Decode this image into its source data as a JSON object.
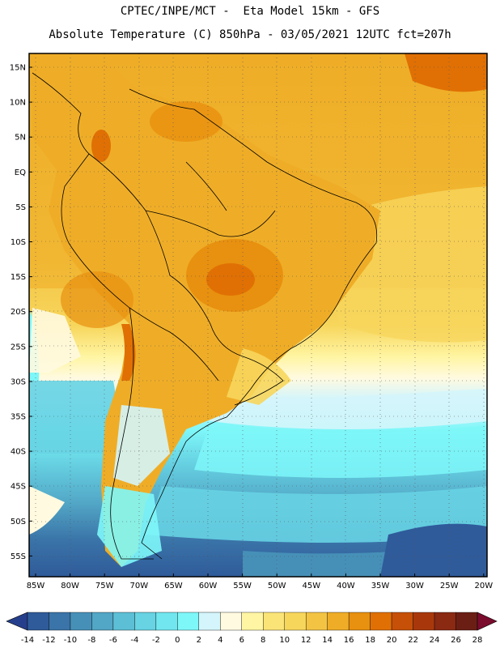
{
  "header": {
    "line1": "CPTEC/INPE/MCT -  Eta Model 15km - GFS",
    "line2": "Absolute Temperature (C) 850hPa - 03/05/2021 12UTC fct=207h"
  },
  "map": {
    "lat_labels": [
      "15N",
      "10N",
      "5N",
      "EQ",
      "5S",
      "10S",
      "15S",
      "20S",
      "25S",
      "30S",
      "35S",
      "40S",
      "45S",
      "50S",
      "55S"
    ],
    "lon_labels": [
      "85W",
      "80W",
      "75W",
      "70W",
      "65W",
      "60W",
      "55W",
      "50W",
      "45W",
      "40W",
      "35W",
      "30W",
      "25W",
      "20W"
    ]
  },
  "colorbar": {
    "labels": [
      "-14",
      "-12",
      "-10",
      "-8",
      "-6",
      "-4",
      "-2",
      "0",
      "2",
      "4",
      "6",
      "8",
      "10",
      "12",
      "14",
      "16",
      "18",
      "20",
      "22",
      "24",
      "26",
      "28"
    ],
    "colors": [
      "#263f8c",
      "#2f5b9a",
      "#3a74a8",
      "#4690b8",
      "#52a6c6",
      "#5cbfd6",
      "#67d3e3",
      "#71e6ef",
      "#7ef7f9",
      "#d4f5fb",
      "#fffae0",
      "#fff5a3",
      "#fbe477",
      "#f7d65c",
      "#f3c444",
      "#efad27",
      "#e8900f",
      "#e07004",
      "#c65008",
      "#a8380c",
      "#8a2a13",
      "#6b1f14",
      "#7a0c2e"
    ]
  }
}
